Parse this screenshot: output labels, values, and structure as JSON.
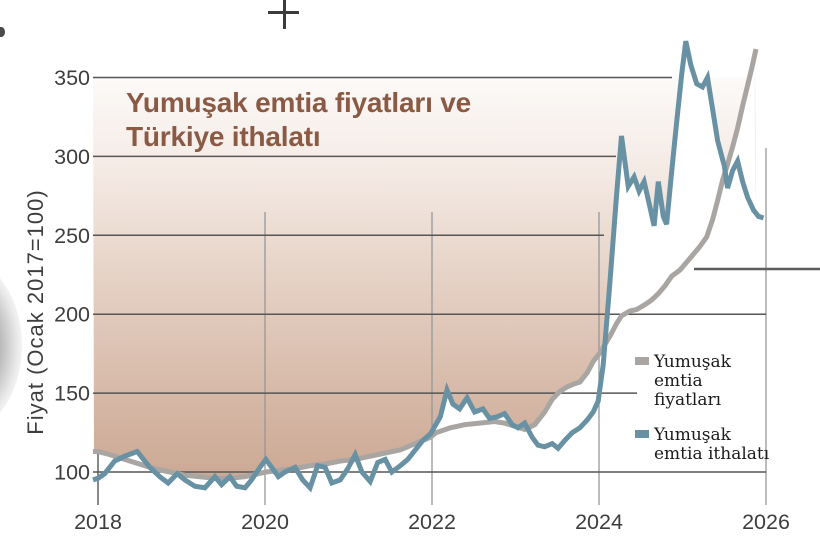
{
  "title": {
    "line1": "Yumuşak emtia fiyatları ve",
    "line2": "Türkiye ithalatı"
  },
  "y_axis": {
    "label": "Fiyat (Ocak 2017=100)",
    "ticks": [
      100,
      150,
      200,
      250,
      300,
      350
    ]
  },
  "x_axis": {
    "ticks": [
      2018,
      2020,
      2022,
      2024,
      2026
    ]
  },
  "legend": {
    "items": [
      {
        "series": "fiyatlari",
        "color": "#a8a5a2",
        "lines": [
          "Yumuşak",
          "emtia",
          "fiyatları"
        ]
      },
      {
        "series": "ithalati",
        "color": "#6891a3",
        "lines": [
          "Yumuşak",
          "emtia ithalatı"
        ]
      }
    ]
  },
  "colors": {
    "background": "#ffffff",
    "title": "#8a5a44",
    "axis_text": "#3e3e3e",
    "h_grid": "#565656",
    "v_grid": "#979797",
    "annotation_line": "#5e5e5e",
    "series_fiyatlari": "#a8a5a2",
    "series_ithalati": "#6891a3",
    "fill_top": "#fcfaf8",
    "fill_mid": "#e4cfc2",
    "fill_bottom": "#c8a48f"
  },
  "chart_data": {
    "type": "line",
    "title": "Yumuşak emtia fiyatları ve Türkiye ithalatı",
    "ylabel": "Fiyat (Ocak 2017=100)",
    "x_ticks": [
      2018,
      2020,
      2022,
      2024,
      2026
    ],
    "y_ticks": [
      100,
      150,
      200,
      250,
      300,
      350
    ],
    "x_range": [
      2017.94,
      2026
    ],
    "ylim": [
      79,
      352
    ],
    "grid": "partial",
    "legend_position": "right",
    "background_fill": {
      "type": "gradient above upper envelope of both series",
      "from": "#fcfaf8",
      "to": "#c8a48f"
    },
    "series": [
      {
        "name": "Yumuşak emtia fiyatları",
        "color": "#a8a5a2",
        "points": [
          [
            2017.94,
            113
          ],
          [
            2018,
            113
          ],
          [
            2018.14,
            111
          ],
          [
            2018.32,
            108
          ],
          [
            2018.5,
            105
          ],
          [
            2018.68,
            102
          ],
          [
            2018.86,
            100
          ],
          [
            2019.04,
            98
          ],
          [
            2019.22,
            97
          ],
          [
            2019.4,
            96
          ],
          [
            2019.58,
            96
          ],
          [
            2019.76,
            97
          ],
          [
            2019.84,
            98
          ],
          [
            2020.01,
            100
          ],
          [
            2020.18,
            101
          ],
          [
            2020.36,
            102
          ],
          [
            2020.54,
            104
          ],
          [
            2020.72,
            105
          ],
          [
            2020.9,
            107
          ],
          [
            2021.08,
            108
          ],
          [
            2021.26,
            110
          ],
          [
            2021.44,
            112
          ],
          [
            2021.62,
            114
          ],
          [
            2021.8,
            118
          ],
          [
            2021.98,
            122
          ],
          [
            2022.05,
            125
          ],
          [
            2022.22,
            128
          ],
          [
            2022.39,
            130
          ],
          [
            2022.57,
            131
          ],
          [
            2022.75,
            132
          ],
          [
            2022.87,
            131
          ],
          [
            2022.99,
            129
          ],
          [
            2023.11,
            127
          ],
          [
            2023.23,
            130
          ],
          [
            2023.35,
            138
          ],
          [
            2023.44,
            146
          ],
          [
            2023.53,
            151
          ],
          [
            2023.62,
            154
          ],
          [
            2023.71,
            156
          ],
          [
            2023.77,
            157
          ],
          [
            2023.86,
            163
          ],
          [
            2023.93,
            170
          ],
          [
            2023.99,
            174
          ],
          [
            2024.05,
            179
          ],
          [
            2024.13,
            186
          ],
          [
            2024.21,
            194
          ],
          [
            2024.27,
            199
          ],
          [
            2024.37,
            202
          ],
          [
            2024.45,
            203
          ],
          [
            2024.55,
            206
          ],
          [
            2024.63,
            209
          ],
          [
            2024.71,
            213
          ],
          [
            2024.79,
            218
          ],
          [
            2024.87,
            224
          ],
          [
            2024.97,
            228
          ],
          [
            2025.05,
            233
          ],
          [
            2025.13,
            238
          ],
          [
            2025.21,
            243
          ],
          [
            2025.29,
            249
          ],
          [
            2025.36,
            260
          ],
          [
            2025.42,
            272
          ],
          [
            2025.48,
            285
          ],
          [
            2025.54,
            295
          ],
          [
            2025.6,
            306
          ],
          [
            2025.66,
            318
          ],
          [
            2025.72,
            332
          ],
          [
            2025.78,
            345
          ],
          [
            2025.83,
            356
          ],
          [
            2025.88,
            368
          ]
        ]
      },
      {
        "name": "Yumuşak emtia ithalatı",
        "color": "#6891a3",
        "points": [
          [
            2017.94,
            95
          ],
          [
            2018,
            96
          ],
          [
            2018.08,
            99
          ],
          [
            2018.2,
            107
          ],
          [
            2018.32,
            110
          ],
          [
            2018.47,
            113
          ],
          [
            2018.62,
            103
          ],
          [
            2018.74,
            97
          ],
          [
            2018.84,
            93
          ],
          [
            2018.95,
            99
          ],
          [
            2019.04,
            95
          ],
          [
            2019.16,
            91
          ],
          [
            2019.28,
            90
          ],
          [
            2019.4,
            97
          ],
          [
            2019.48,
            92
          ],
          [
            2019.58,
            97
          ],
          [
            2019.66,
            91
          ],
          [
            2019.76,
            90
          ],
          [
            2019.84,
            95
          ],
          [
            2019.94,
            103
          ],
          [
            2020.01,
            108
          ],
          [
            2020.08,
            103
          ],
          [
            2020.16,
            97
          ],
          [
            2020.24,
            100
          ],
          [
            2020.36,
            103
          ],
          [
            2020.45,
            95
          ],
          [
            2020.54,
            90
          ],
          [
            2020.63,
            104
          ],
          [
            2020.72,
            103
          ],
          [
            2020.8,
            93
          ],
          [
            2020.9,
            95
          ],
          [
            2020.99,
            102
          ],
          [
            2021.08,
            111
          ],
          [
            2021.16,
            100
          ],
          [
            2021.26,
            94
          ],
          [
            2021.35,
            106
          ],
          [
            2021.44,
            108
          ],
          [
            2021.52,
            100
          ],
          [
            2021.62,
            104
          ],
          [
            2021.71,
            108
          ],
          [
            2021.8,
            114
          ],
          [
            2021.89,
            120
          ],
          [
            2021.98,
            124
          ],
          [
            2022.1,
            135
          ],
          [
            2022.18,
            152
          ],
          [
            2022.25,
            143
          ],
          [
            2022.33,
            140
          ],
          [
            2022.42,
            147
          ],
          [
            2022.51,
            138
          ],
          [
            2022.61,
            140
          ],
          [
            2022.69,
            134
          ],
          [
            2022.78,
            135
          ],
          [
            2022.87,
            137
          ],
          [
            2022.96,
            130
          ],
          [
            2023.03,
            128
          ],
          [
            2023.11,
            131
          ],
          [
            2023.2,
            122
          ],
          [
            2023.27,
            117
          ],
          [
            2023.35,
            116
          ],
          [
            2023.44,
            118
          ],
          [
            2023.51,
            115
          ],
          [
            2023.59,
            120
          ],
          [
            2023.68,
            125
          ],
          [
            2023.77,
            128
          ],
          [
            2023.86,
            133
          ],
          [
            2023.93,
            138
          ],
          [
            2023.99,
            145
          ],
          [
            2024.05,
            168
          ],
          [
            2024.13,
            220
          ],
          [
            2024.21,
            275
          ],
          [
            2024.27,
            313
          ],
          [
            2024.35,
            281
          ],
          [
            2024.42,
            287
          ],
          [
            2024.48,
            278
          ],
          [
            2024.54,
            284
          ],
          [
            2024.61,
            268
          ],
          [
            2024.66,
            256
          ],
          [
            2024.71,
            284
          ],
          [
            2024.77,
            262
          ],
          [
            2024.81,
            257
          ],
          [
            2024.87,
            290
          ],
          [
            2024.93,
            322
          ],
          [
            2024.99,
            352
          ],
          [
            2025.04,
            373
          ],
          [
            2025.1,
            358
          ],
          [
            2025.17,
            346
          ],
          [
            2025.24,
            344
          ],
          [
            2025.3,
            350
          ],
          [
            2025.36,
            330
          ],
          [
            2025.42,
            310
          ],
          [
            2025.5,
            294
          ],
          [
            2025.54,
            280
          ],
          [
            2025.6,
            291
          ],
          [
            2025.66,
            297
          ],
          [
            2025.72,
            284
          ],
          [
            2025.78,
            274
          ],
          [
            2025.85,
            266
          ],
          [
            2025.91,
            262
          ],
          [
            2025.97,
            261
          ]
        ]
      }
    ]
  }
}
